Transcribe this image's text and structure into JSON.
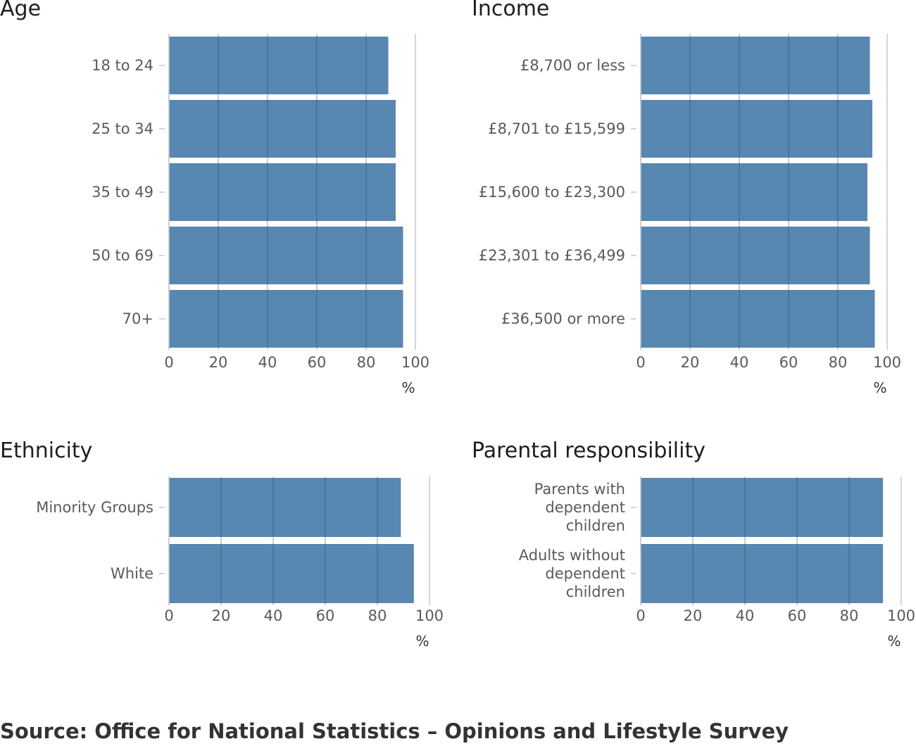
{
  "source": "Source: Office for National Statistics – Opinions and Lifestyle Survey",
  "colors": {
    "bar": "#5887b1",
    "grid": "#c8c8c8",
    "tick": "#5a5a5a"
  },
  "chart_data": [
    {
      "type": "bar",
      "orientation": "horizontal",
      "title": "Age",
      "categories": [
        "18 to 24",
        "25 to 34",
        "35 to 49",
        "50 to 69",
        "70+"
      ],
      "values": [
        89,
        92,
        92,
        95,
        95
      ],
      "xlabel": "%",
      "xlim": [
        0,
        100
      ],
      "xticks": [
        "0",
        "20",
        "40",
        "60",
        "80",
        "100"
      ],
      "grid": true
    },
    {
      "type": "bar",
      "orientation": "horizontal",
      "title": "Income",
      "categories": [
        "£8,700 or less",
        "£8,701 to £15,599",
        "£15,600 to £23,300",
        "£23,301 to £36,499",
        "£36,500 or more"
      ],
      "values": [
        93,
        94,
        92,
        93,
        95
      ],
      "xlabel": "%",
      "xlim": [
        0,
        100
      ],
      "xticks": [
        "0",
        "20",
        "40",
        "60",
        "80",
        "100"
      ],
      "grid": true
    },
    {
      "type": "bar",
      "orientation": "horizontal",
      "title": "Ethnicity",
      "categories": [
        "Minority Groups",
        "White"
      ],
      "values": [
        89,
        94
      ],
      "xlabel": "%",
      "xlim": [
        0,
        100
      ],
      "xticks": [
        "0",
        "20",
        "40",
        "60",
        "80",
        "100"
      ],
      "grid": true
    },
    {
      "type": "bar",
      "orientation": "horizontal",
      "title": "Parental responsibility",
      "categories": [
        "Parents with dependent children",
        "Adults without dependent children"
      ],
      "category_lines": [
        [
          "Parents with",
          "dependent",
          "children"
        ],
        [
          "Adults without",
          "dependent",
          "children"
        ]
      ],
      "values": [
        93,
        93
      ],
      "xlabel": "%",
      "xlim": [
        0,
        100
      ],
      "xticks": [
        "0",
        "20",
        "40",
        "60",
        "80",
        "100"
      ],
      "grid": true
    }
  ]
}
